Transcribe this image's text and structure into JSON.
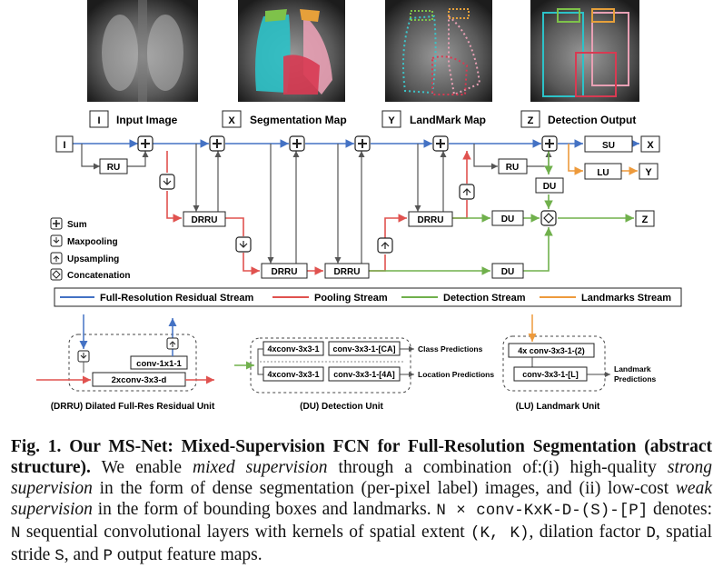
{
  "images": [
    {
      "key": "I",
      "label": "Input Image"
    },
    {
      "key": "X",
      "label": "Segmentation Map"
    },
    {
      "key": "Y",
      "label": "LandMark Map"
    },
    {
      "key": "Z",
      "label": "Detection Output"
    }
  ],
  "nodes": {
    "I": "I",
    "X": "X",
    "Y": "Y",
    "Z": "Z",
    "RU": "RU",
    "DRRU": "DRRU",
    "DU": "DU",
    "SU": "SU",
    "LU": "LU"
  },
  "legend_ops": [
    {
      "label": "Sum",
      "icon": "plus-icon"
    },
    {
      "label": "Maxpooling",
      "icon": "down-arrow-icon"
    },
    {
      "label": "Upsampling",
      "icon": "up-arrow-icon"
    },
    {
      "label": "Concatenation",
      "icon": "diamond-icon"
    }
  ],
  "streams": [
    {
      "label": "Full-Resolution Residual Stream",
      "color": "#4472c4"
    },
    {
      "label": "Pooling Stream",
      "color": "#e0524f"
    },
    {
      "label": "Detection Stream",
      "color": "#70b04c"
    },
    {
      "label": "Landmarks Stream",
      "color": "#ed9a3c"
    }
  ],
  "units": {
    "drru": {
      "caption": "(DRRU) Dilated Full-Res Residual Unit",
      "conv1": "conv-1x1-1",
      "conv2": "2xconv-3x3-d"
    },
    "du": {
      "caption": "(DU) Detection Unit",
      "row1a": "4xconv-3x3-1",
      "row1b": "conv-3x3-1-[CA]",
      "row1out": "Class Predictions",
      "row2a": "4xconv-3x3-1",
      "row2b": "conv-3x3-1-[4A]",
      "row2out": "Location Predictions"
    },
    "lu": {
      "caption": "(LU) Landmark Unit",
      "conv1": "4x conv-3x3-1-(2)",
      "conv2": "conv-3x3-1-[L]",
      "out1": "Landmark",
      "out2": "Predictions"
    }
  },
  "caption": {
    "title": "Fig. 1. Our MS-Net: Mixed-Supervision FCN for Full-Resolution Segmentation (abstract structure).",
    "t1": " We enable ",
    "e1": "mixed supervision",
    "t2": " through a combination of:(i) high-quality ",
    "e2": "strong supervision",
    "t3": " in the form of dense segmentation (per-pixel label) images, and (ii) low-cost ",
    "e3": "weak supervision",
    "t4": " in the form of bounding boxes and landmarks. ",
    "m1": "N × conv-KxK-D-(S)-[P]",
    "t5": " denotes: ",
    "m2": "N",
    "t6": " sequential convolutional layers with kernels of spatial extent ",
    "m3": "(K, K)",
    "t7": ", dilation factor ",
    "m4": "D",
    "t8": ", spatial stride ",
    "m5": "S",
    "t9": ", and ",
    "m6": "P",
    "t10": " output feature maps."
  }
}
